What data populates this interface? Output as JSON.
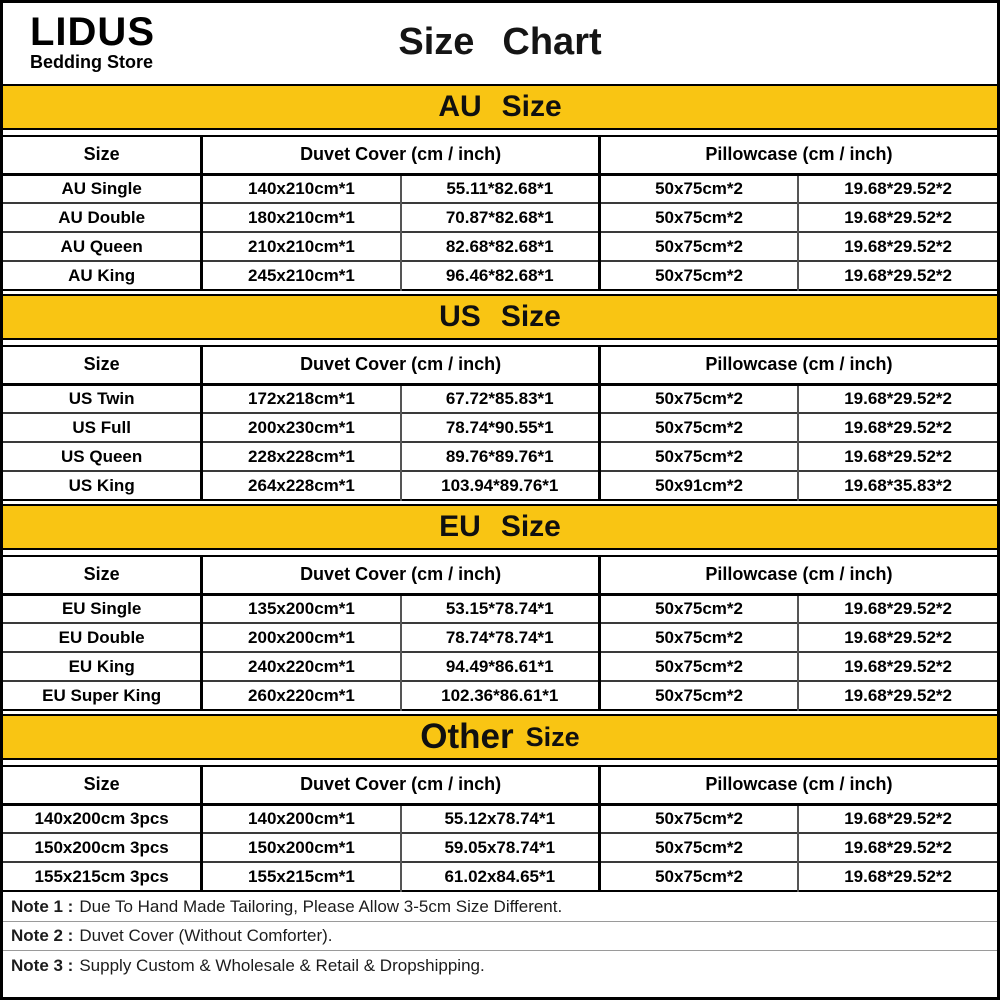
{
  "header": {
    "brand_name": "LIDUS",
    "brand_subtitle": "Bedding Store",
    "title_word1": "Size",
    "title_word2": "Chart"
  },
  "columns": {
    "size": "Size",
    "duvet": "Duvet Cover (cm / inch)",
    "pillow": "Pillowcase (cm / inch)"
  },
  "sections": [
    {
      "banner_main": "AU",
      "banner_sub": "Size",
      "rows": [
        [
          "AU Single",
          "140x210cm*1",
          "55.11*82.68*1",
          "50x75cm*2",
          "19.68*29.52*2"
        ],
        [
          "AU Double",
          "180x210cm*1",
          "70.87*82.68*1",
          "50x75cm*2",
          "19.68*29.52*2"
        ],
        [
          "AU Queen",
          "210x210cm*1",
          "82.68*82.68*1",
          "50x75cm*2",
          "19.68*29.52*2"
        ],
        [
          "AU King",
          "245x210cm*1",
          "96.46*82.68*1",
          "50x75cm*2",
          "19.68*29.52*2"
        ]
      ]
    },
    {
      "banner_main": "US",
      "banner_sub": "Size",
      "rows": [
        [
          "US Twin",
          "172x218cm*1",
          "67.72*85.83*1",
          "50x75cm*2",
          "19.68*29.52*2"
        ],
        [
          "US Full",
          "200x230cm*1",
          "78.74*90.55*1",
          "50x75cm*2",
          "19.68*29.52*2"
        ],
        [
          "US Queen",
          "228x228cm*1",
          "89.76*89.76*1",
          "50x75cm*2",
          "19.68*29.52*2"
        ],
        [
          "US King",
          "264x228cm*1",
          "103.94*89.76*1",
          "50x91cm*2",
          "19.68*35.83*2"
        ]
      ]
    },
    {
      "banner_main": "EU",
      "banner_sub": "Size",
      "rows": [
        [
          "EU Single",
          "135x200cm*1",
          "53.15*78.74*1",
          "50x75cm*2",
          "19.68*29.52*2"
        ],
        [
          "EU Double",
          "200x200cm*1",
          "78.74*78.74*1",
          "50x75cm*2",
          "19.68*29.52*2"
        ],
        [
          "EU King",
          "240x220cm*1",
          "94.49*86.61*1",
          "50x75cm*2",
          "19.68*29.52*2"
        ],
        [
          "EU Super King",
          "260x220cm*1",
          "102.36*86.61*1",
          "50x75cm*2",
          "19.68*29.52*2"
        ]
      ]
    },
    {
      "banner_main": "Other",
      "banner_sub": "Size",
      "rows": [
        [
          "140x200cm 3pcs",
          "140x200cm*1",
          "55.12x78.74*1",
          "50x75cm*2",
          "19.68*29.52*2"
        ],
        [
          "150x200cm 3pcs",
          "150x200cm*1",
          "59.05x78.74*1",
          "50x75cm*2",
          "19.68*29.52*2"
        ],
        [
          "155x215cm 3pcs",
          "155x215cm*1",
          "61.02x84.65*1",
          "50x75cm*2",
          "19.68*29.52*2"
        ]
      ]
    }
  ],
  "notes": [
    {
      "label": "Note 1 :",
      "text": "Due To Hand Made Tailoring, Please Allow 3-5cm Size Different."
    },
    {
      "label": "Note 2 :",
      "text": "Duvet Cover (Without Comforter)."
    },
    {
      "label": "Note 3 :",
      "text": "Supply Custom & Wholesale & Retail & Dropshipping."
    }
  ],
  "colors": {
    "banner_yellow": "#F9C513",
    "border_black": "#000000"
  }
}
